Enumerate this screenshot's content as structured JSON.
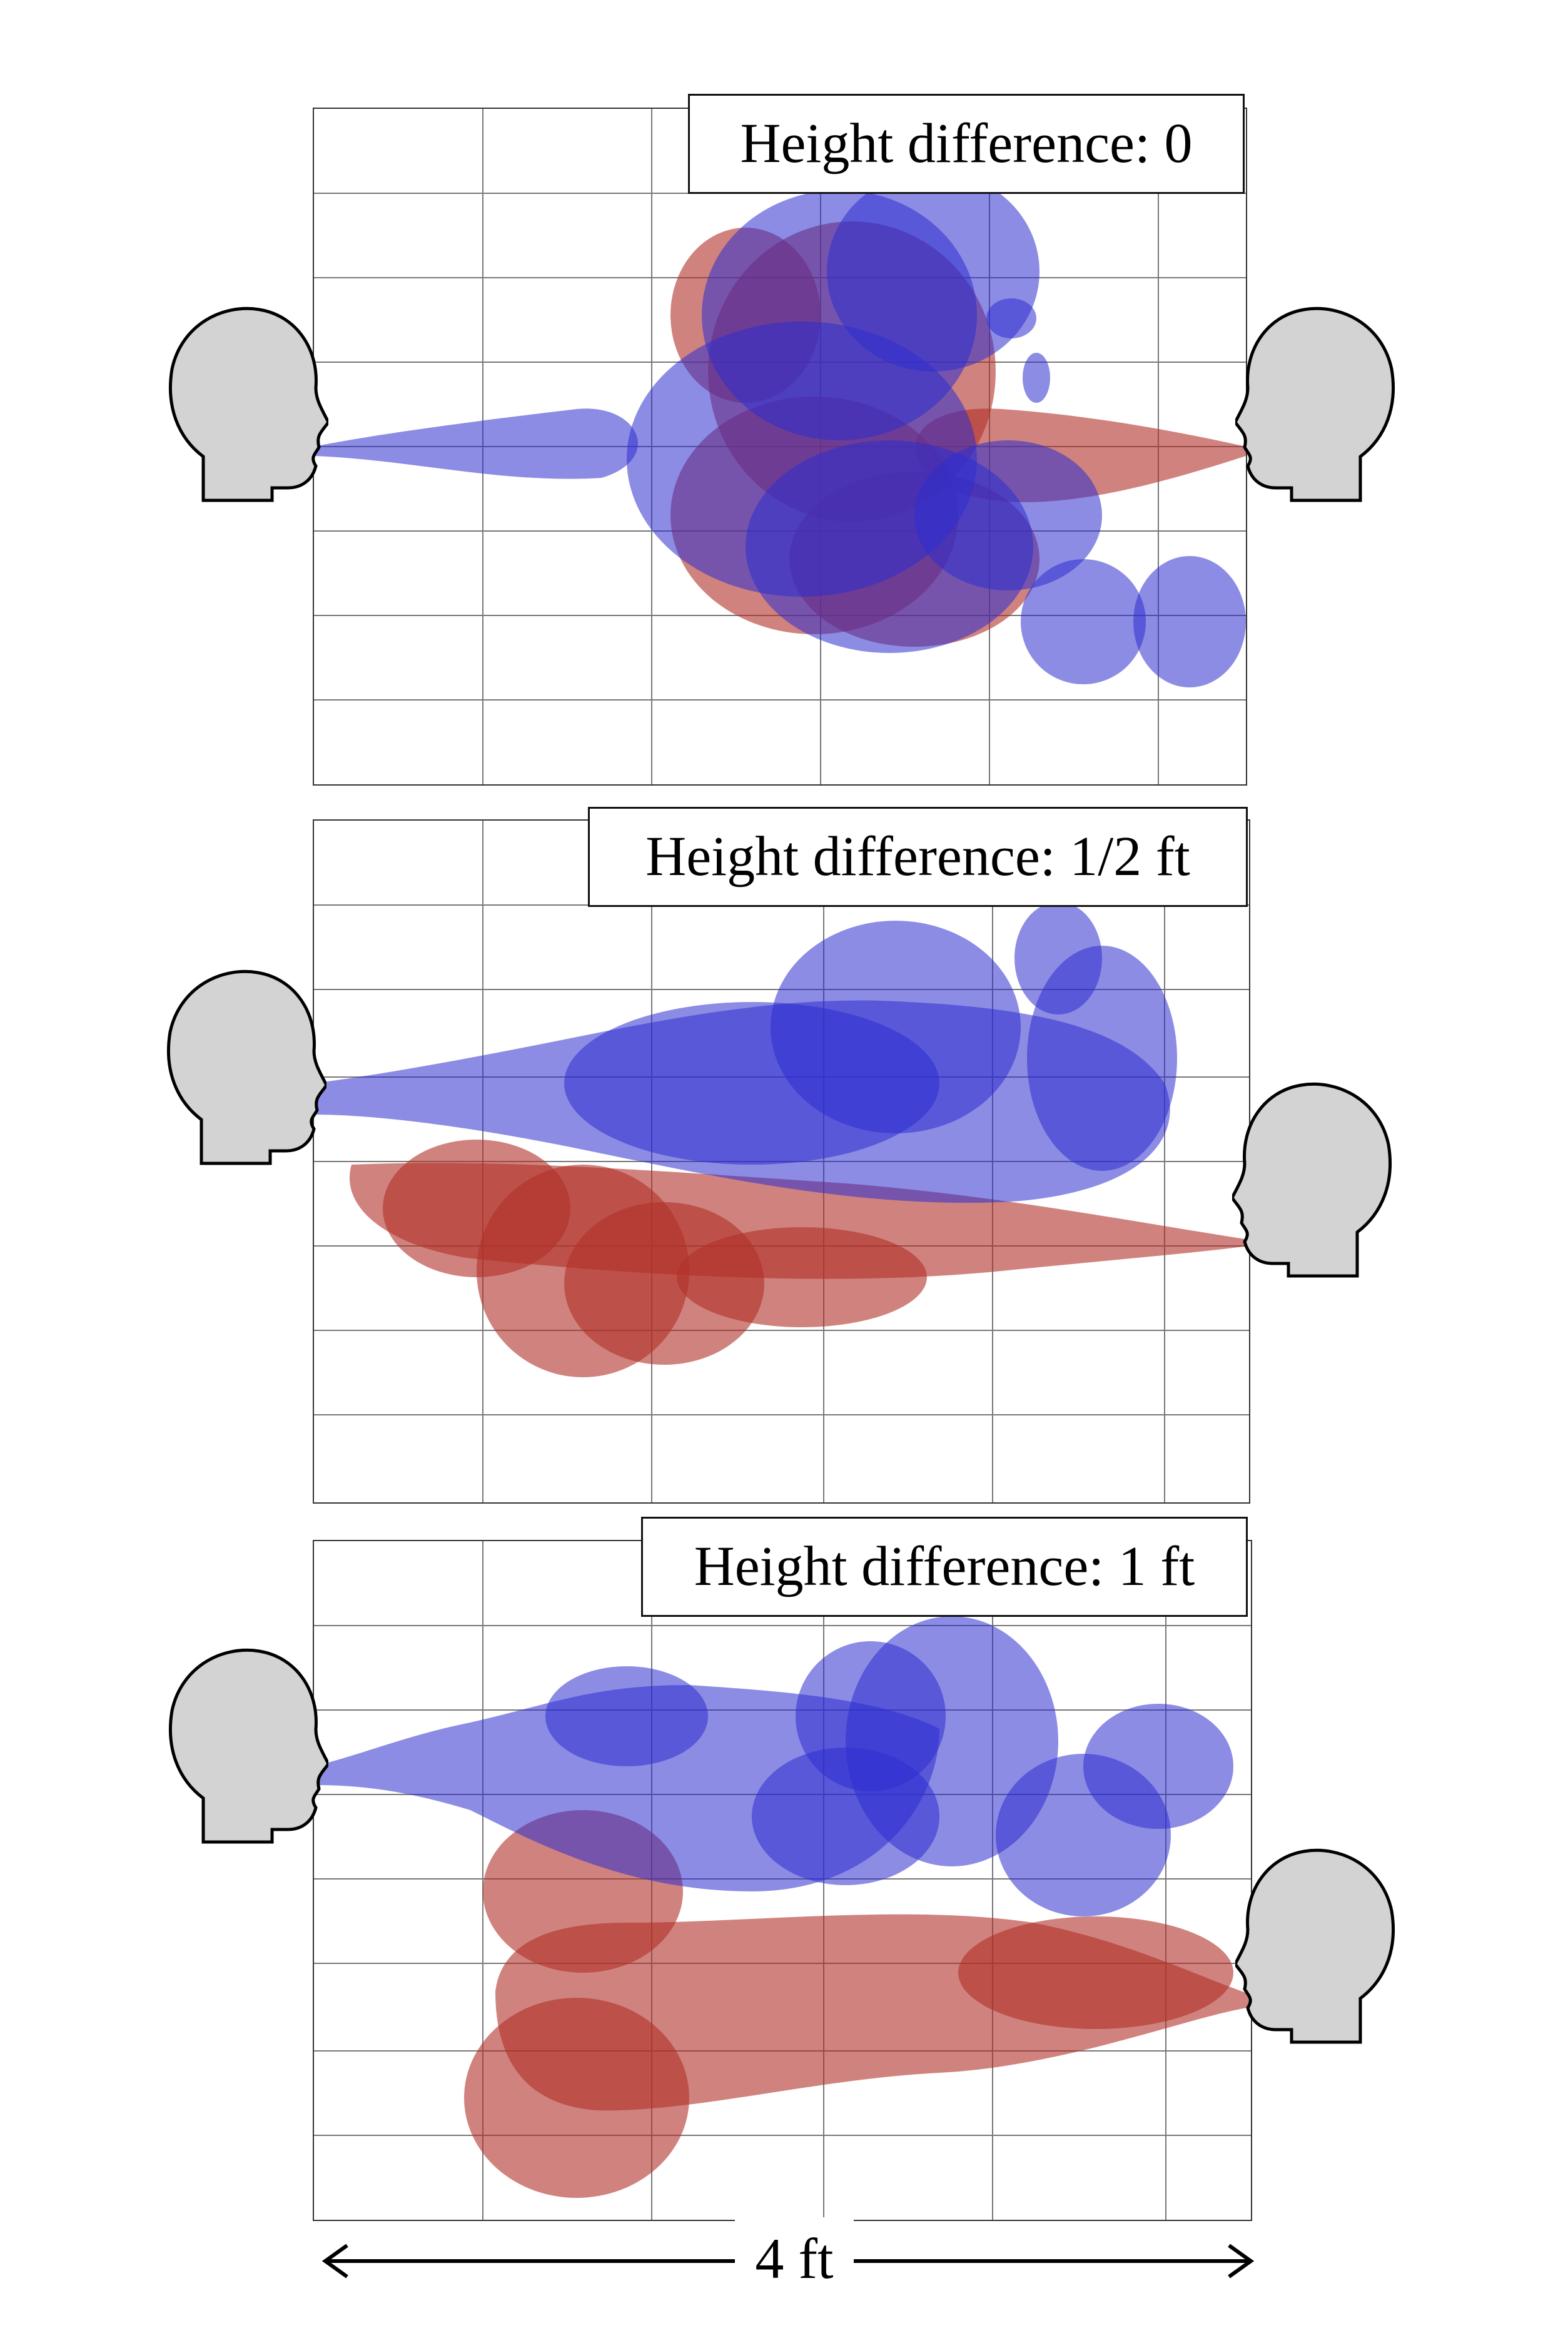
{
  "panels": [
    {
      "label": "Height difference: 0"
    },
    {
      "label": "Height difference: 1/2 ft"
    },
    {
      "label": "Height difference: 1 ft"
    }
  ],
  "scale": {
    "label": "4 ft"
  },
  "colors": {
    "blue_plume": "#3333cc",
    "red_plume": "#b03028",
    "head_fill": "#d3d3d3",
    "grid": "#666666"
  },
  "icons": [
    "head-silhouette-icon",
    "double-arrow-icon"
  ]
}
